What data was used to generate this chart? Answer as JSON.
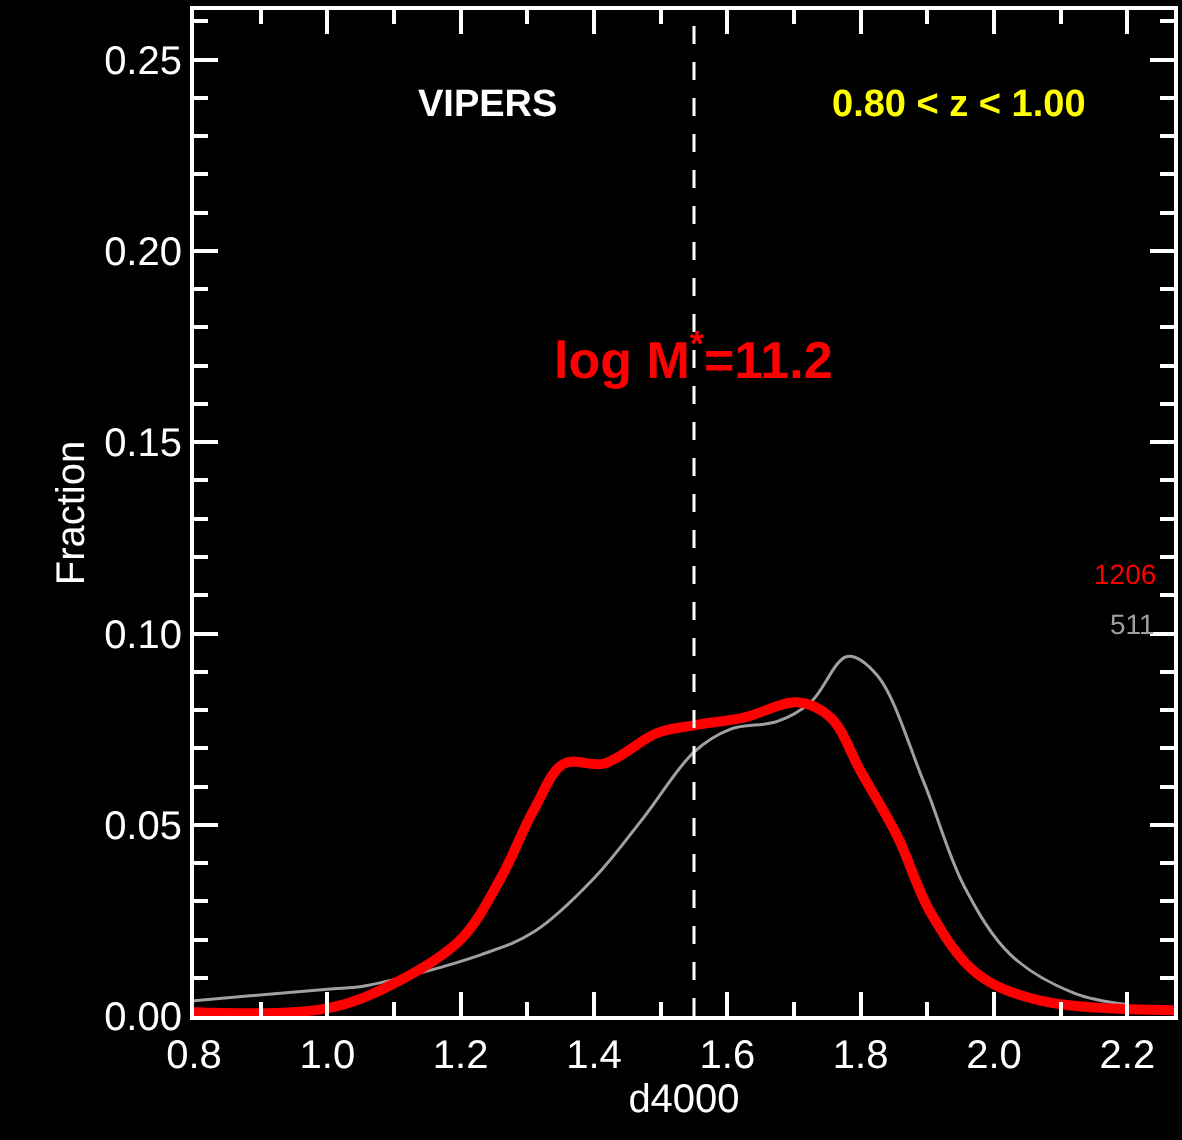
{
  "chart_data": {
    "type": "line",
    "xlabel": "d4000",
    "ylabel": "Fraction",
    "xlim": [
      0.8,
      2.27
    ],
    "xticks": [
      {
        "value": 0.8,
        "label": "0.8"
      },
      {
        "value": 1.0,
        "label": "1.0"
      },
      {
        "value": 1.2,
        "label": "1.2"
      },
      {
        "value": 1.4,
        "label": "1.4"
      },
      {
        "value": 1.6,
        "label": "1.6"
      },
      {
        "value": 1.8,
        "label": "1.8"
      },
      {
        "value": 2.0,
        "label": "2.0"
      },
      {
        "value": 2.2,
        "label": "2.2"
      }
    ],
    "ylim": [
      0,
      0.263
    ],
    "yticks": [
      {
        "value": 0,
        "label": "0.00"
      },
      {
        "value": 0.05,
        "label": "0.05"
      },
      {
        "value": 0.1,
        "label": "0.10"
      },
      {
        "value": 0.15,
        "label": "0.15"
      },
      {
        "value": 0.2,
        "label": "0.20"
      },
      {
        "value": 0.25,
        "label": "0.25"
      }
    ],
    "grid": false,
    "legend": false,
    "series": [
      {
        "name": "511",
        "color": "#a0a0a0",
        "x": [
          0.8,
          1.0,
          1.06,
          1.23,
          1.31,
          1.4,
          1.475,
          1.55,
          1.605,
          1.675,
          1.725,
          1.78,
          1.825,
          1.895,
          1.955,
          2.025,
          2.12,
          2.2
        ],
        "values": [
          0.004,
          0.007,
          0.008,
          0.016,
          0.022,
          0.036,
          0.052,
          0.069,
          0.075,
          0.077,
          0.082,
          0.094,
          0.089,
          0.061,
          0.034,
          0.016,
          0.006,
          0.003
        ]
      },
      {
        "name": "1206",
        "color": "#ff0000",
        "x": [
          0.8,
          1.0,
          1.1,
          1.2,
          1.26,
          1.31,
          1.355,
          1.415,
          1.495,
          1.55,
          1.625,
          1.705,
          1.755,
          1.8,
          1.855,
          1.905,
          1.975,
          2.07,
          2.27
        ],
        "values": [
          0.001,
          0.002,
          0.0085,
          0.02,
          0.036,
          0.054,
          0.066,
          0.066,
          0.074,
          0.076,
          0.078,
          0.082,
          0.078,
          0.064,
          0.047,
          0.027,
          0.011,
          0.004,
          0.0015
        ]
      }
    ],
    "ref_lines": [
      {
        "axis": "x",
        "value": 1.55,
        "color": "#ffffff",
        "line_style": "dashed"
      }
    ],
    "annotations": [
      "VIPERS",
      "0.80 < z < 1.00",
      "log M$^{*}$=11.2"
    ]
  }
}
